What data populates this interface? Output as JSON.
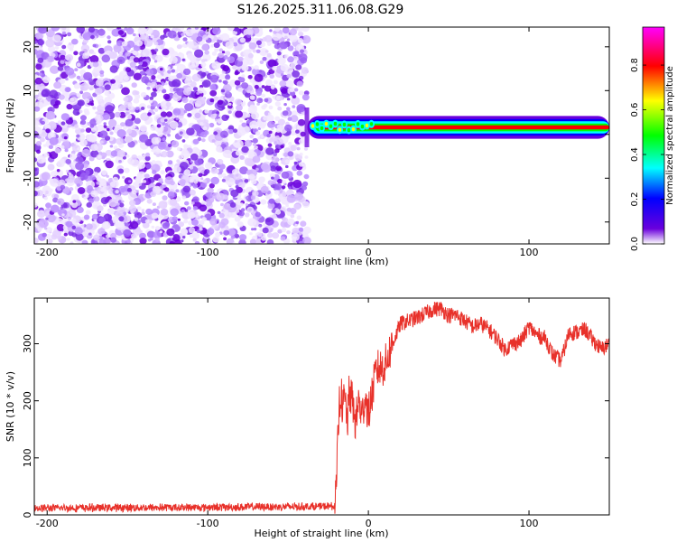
{
  "figure": {
    "title": "S126.2025.311.06.08.G29"
  },
  "chart_data": [
    {
      "type": "heatmap",
      "name": "spectrogram",
      "xlabel": "Height of straight line (km)",
      "ylabel": "Frequency (Hz)",
      "xlim": [
        -208,
        150
      ],
      "ylim": [
        -25,
        24.5
      ],
      "xticks": [
        -200,
        -100,
        0,
        100
      ],
      "yticks": [
        -20,
        -10,
        0,
        10,
        20
      ],
      "noise_region_x": [
        -208,
        -38
      ],
      "signal_band": {
        "x_start": -38,
        "x_end": 150,
        "freq_center": 1.6,
        "freq_halfwidth": 1.0
      },
      "colorbar": {
        "label": "Normalized spectral amplitude",
        "range": [
          0.0,
          0.97
        ],
        "ticks": [
          0.0,
          0.2,
          0.4,
          0.6,
          0.8
        ],
        "tick_labels": [
          "0.0",
          "0.2",
          "0.4",
          "0.6",
          "0.8"
        ],
        "colors": [
          "#ffffff",
          "#6a00dc",
          "#0000ff",
          "#00ffff",
          "#00ff00",
          "#ffff00",
          "#ff0000",
          "#ff00ff"
        ]
      }
    },
    {
      "type": "line",
      "name": "snr",
      "xlabel": "Height of straight line (km)",
      "ylabel": "SNR (10 * v/v)",
      "xlim": [
        -208,
        150
      ],
      "ylim": [
        0,
        380
      ],
      "xticks": [
        -200,
        -100,
        0,
        100
      ],
      "yticks": [
        0,
        100,
        200,
        300
      ],
      "color": "#e8312a",
      "series": [
        {
          "name": "SNR",
          "x": [
            -208,
            -120,
            -21,
            -20,
            -19,
            -18,
            -17,
            -16,
            -15,
            -14,
            -13,
            -12,
            -10,
            -8,
            -6,
            -4,
            -2,
            0,
            5,
            10,
            15,
            20,
            25,
            30,
            35,
            40,
            45,
            50,
            55,
            60,
            65,
            70,
            75,
            80,
            85,
            90,
            95,
            100,
            105,
            110,
            115,
            120,
            125,
            130,
            135,
            140,
            145,
            150
          ],
          "y": [
            12,
            13,
            15,
            40,
            130,
            200,
            215,
            185,
            205,
            190,
            160,
            215,
            200,
            160,
            200,
            170,
            210,
            175,
            255,
            260,
            300,
            335,
            340,
            345,
            352,
            360,
            362,
            350,
            350,
            340,
            330,
            335,
            325,
            310,
            290,
            300,
            305,
            330,
            315,
            310,
            280,
            270,
            320,
            320,
            325,
            305,
            290,
            300
          ]
        }
      ]
    }
  ]
}
